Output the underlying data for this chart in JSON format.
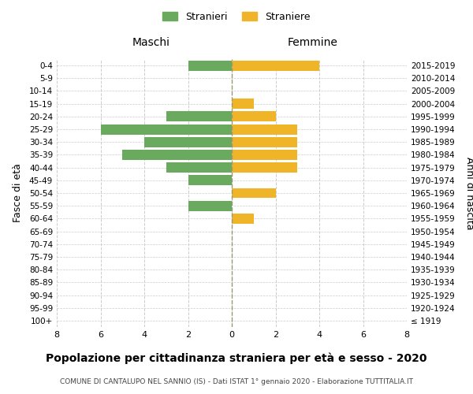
{
  "age_groups": [
    "100+",
    "95-99",
    "90-94",
    "85-89",
    "80-84",
    "75-79",
    "70-74",
    "65-69",
    "60-64",
    "55-59",
    "50-54",
    "45-49",
    "40-44",
    "35-39",
    "30-34",
    "25-29",
    "20-24",
    "15-19",
    "10-14",
    "5-9",
    "0-4"
  ],
  "birth_years": [
    "≤ 1919",
    "1920-1924",
    "1925-1929",
    "1930-1934",
    "1935-1939",
    "1940-1944",
    "1945-1949",
    "1950-1954",
    "1955-1959",
    "1960-1964",
    "1965-1969",
    "1970-1974",
    "1975-1979",
    "1980-1984",
    "1985-1989",
    "1990-1994",
    "1995-1999",
    "2000-2004",
    "2005-2009",
    "2010-2014",
    "2015-2019"
  ],
  "maschi": [
    0,
    0,
    0,
    0,
    0,
    0,
    0,
    0,
    0,
    2,
    0,
    2,
    3,
    5,
    4,
    6,
    3,
    0,
    0,
    0,
    2
  ],
  "femmine": [
    0,
    0,
    0,
    0,
    0,
    0,
    0,
    0,
    1,
    0,
    2,
    0,
    3,
    3,
    3,
    3,
    2,
    1,
    0,
    0,
    4
  ],
  "color_maschi": "#6aaa5e",
  "color_femmine": "#f0b429",
  "background_color": "#ffffff",
  "grid_color": "#cccccc",
  "title": "Popolazione per cittadinanza straniera per età e sesso - 2020",
  "subtitle": "COMUNE DI CANTALUPO NEL SANNIO (IS) - Dati ISTAT 1° gennaio 2020 - Elaborazione TUTTITALIA.IT",
  "ylabel_left": "Fasce di età",
  "ylabel_right": "Anni di nascita",
  "xlabel_maschi": "Maschi",
  "xlabel_femmine": "Femmine",
  "legend_maschi": "Stranieri",
  "legend_femmine": "Straniere",
  "xlim": 8,
  "bar_height": 0.8
}
